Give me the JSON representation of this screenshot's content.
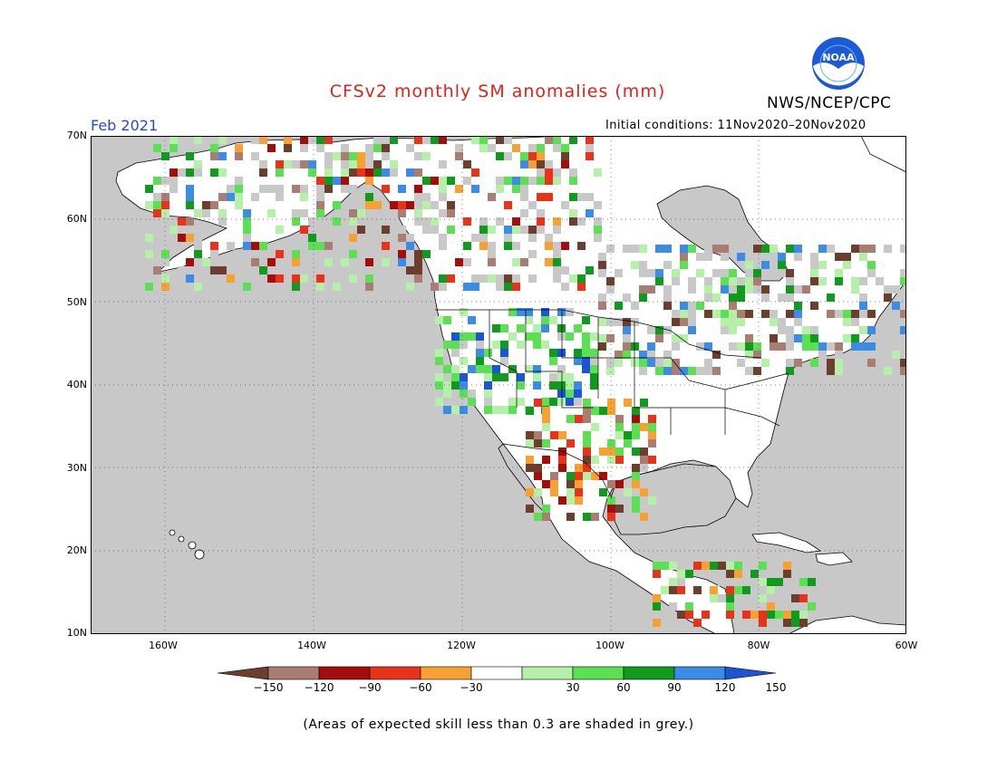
{
  "title": "CFSv2 monthly SM anomalies (mm)",
  "agency": "NWS/NCEP/CPC",
  "logo_text": "NOAA",
  "valid_month": "Feb 2021",
  "initial_conditions": "Initial conditions: 11Nov2020–20Nov2020",
  "lat_labels": [
    "70N",
    "60N",
    "50N",
    "40N",
    "30N",
    "20N",
    "10N"
  ],
  "lon_labels": [
    "160W",
    "140W",
    "120W",
    "100W",
    "80W",
    "60W"
  ],
  "colorbar": {
    "labels": [
      "−150",
      "−120",
      "−90",
      "−60",
      "−30",
      "30",
      "60",
      "90",
      "120",
      "150"
    ],
    "colors": [
      "#6b3e2e",
      "#a97d72",
      "#a50d0d",
      "#e8321a",
      "#f9a032",
      "#ffffff",
      "#b4f0a8",
      "#5ae052",
      "#109a1e",
      "#3a8ce6",
      "#1b55d6"
    ]
  },
  "note": "(Areas of expected skill less than 0.3 are shaded in grey.)",
  "colors": {
    "ocean": "#c8c8c8",
    "land": "#ffffff",
    "title": "#e0221b",
    "month": "#2a45d6"
  }
}
